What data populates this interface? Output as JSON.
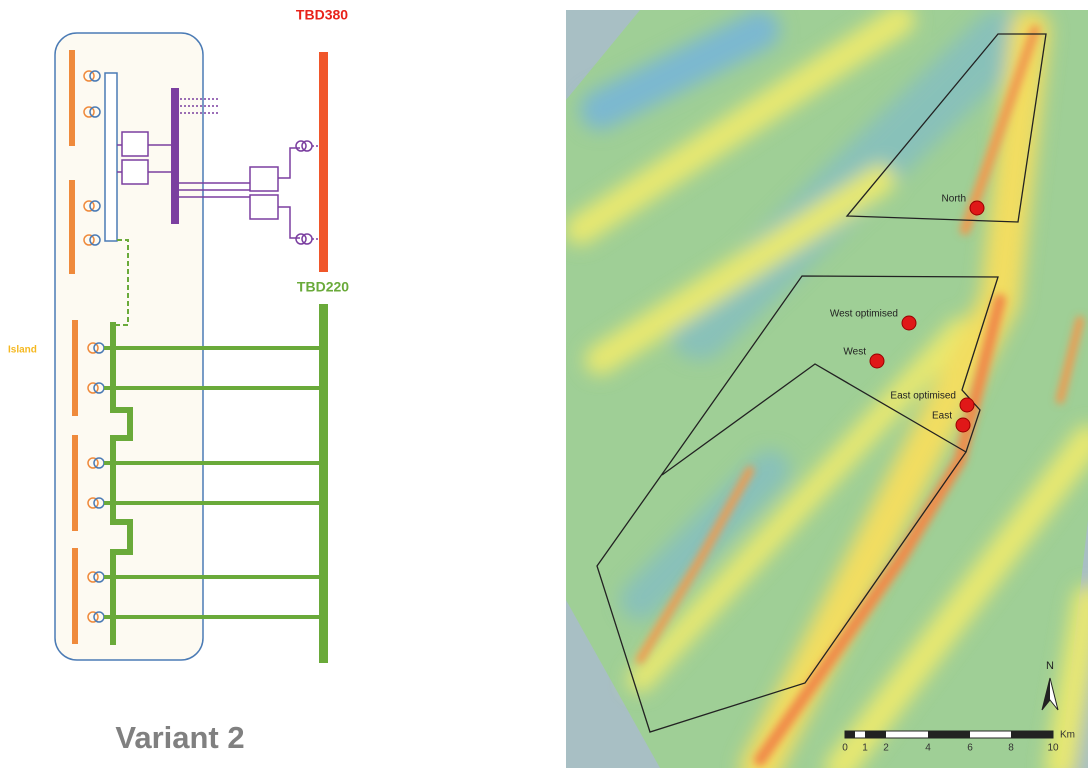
{
  "diagram": {
    "title": "Variant 2",
    "bus_380": "TBD380",
    "bus_220": "TBD220",
    "island_label": "Island"
  },
  "map": {
    "sites": [
      {
        "label": "North"
      },
      {
        "label": "West optimised"
      },
      {
        "label": "West"
      },
      {
        "label": "East optimised"
      },
      {
        "label": "East"
      }
    ],
    "north_arrow": "N",
    "scale": {
      "labels": [
        "0",
        "1",
        "2",
        "4",
        "6",
        "8",
        "10"
      ],
      "unit": "Km"
    }
  }
}
